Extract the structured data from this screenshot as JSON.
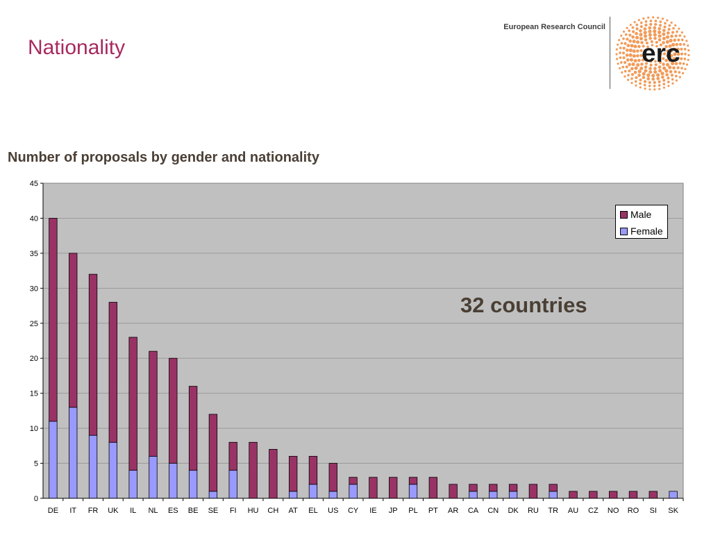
{
  "header": {
    "title": "Nationality",
    "organization": "European Research Council",
    "logo_text": "erc"
  },
  "colors": {
    "title": "#a8295e",
    "male": "#993366",
    "female": "#9999ff",
    "plot_background": "#c0c0c0",
    "logo_orange": "#f08a3c"
  },
  "chart_data": {
    "type": "bar",
    "stacked": true,
    "title": "Number of proposals by gender and nationality",
    "xlabel": "",
    "ylabel": "",
    "ylim": [
      0,
      45
    ],
    "yticks": [
      0,
      5,
      10,
      15,
      20,
      25,
      30,
      35,
      40,
      45
    ],
    "grid": true,
    "legend_position": "top-right",
    "categories": [
      "DE",
      "IT",
      "FR",
      "UK",
      "IL",
      "NL",
      "ES",
      "BE",
      "SE",
      "FI",
      "HU",
      "CH",
      "AT",
      "EL",
      "US",
      "CY",
      "IE",
      "JP",
      "PL",
      "PT",
      "AR",
      "CA",
      "CN",
      "DK",
      "RU",
      "TR",
      "AU",
      "CZ",
      "NO",
      "RO",
      "SI",
      "SK"
    ],
    "series": [
      {
        "name": "Female",
        "values": [
          11,
          13,
          9,
          8,
          4,
          6,
          5,
          4,
          1,
          4,
          0,
          0,
          1,
          2,
          1,
          2,
          0,
          0,
          2,
          0,
          0,
          1,
          1,
          1,
          0,
          1,
          0,
          0,
          0,
          0,
          0,
          1
        ]
      },
      {
        "name": "Male",
        "values": [
          29,
          22,
          23,
          20,
          19,
          15,
          15,
          12,
          11,
          4,
          8,
          7,
          5,
          4,
          4,
          1,
          3,
          3,
          1,
          3,
          2,
          1,
          1,
          1,
          2,
          1,
          1,
          1,
          1,
          1,
          1,
          0
        ]
      }
    ],
    "annotation": "32 countries"
  }
}
